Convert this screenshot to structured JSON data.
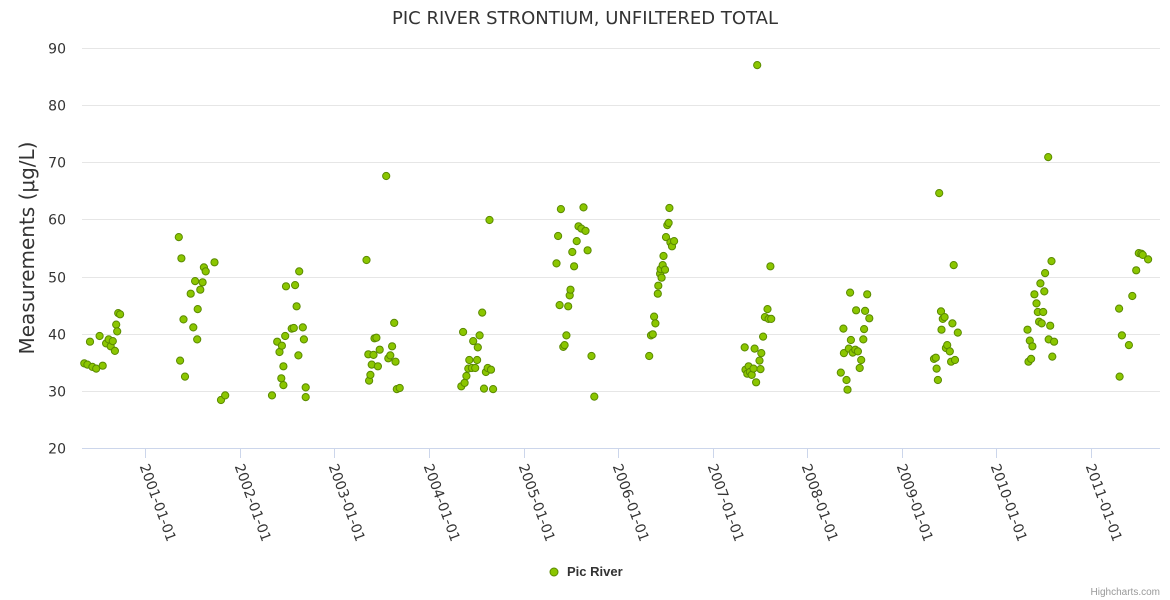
{
  "credits": "Highcharts.com",
  "colors": {
    "marker_fill": "#8bc600",
    "marker_stroke": "#5a8a00"
  },
  "chart_data": {
    "type": "scatter",
    "title": "PIC RIVER STRONTIUM, UNFILTERED TOTAL",
    "ylabel": "Measurements (μg/L)",
    "xlabel": "",
    "ylim": [
      20,
      90
    ],
    "yticks": [
      20,
      30,
      40,
      50,
      60,
      70,
      80,
      90
    ],
    "xlim": [
      "2000-05-01",
      "2011-09-25"
    ],
    "xticks": [
      "2001-01-01",
      "2002-01-01",
      "2003-01-01",
      "2004-01-01",
      "2005-01-01",
      "2006-01-01",
      "2007-01-01",
      "2008-01-01",
      "2009-01-01",
      "2010-01-01",
      "2011-01-01"
    ],
    "grid": true,
    "legend_position": "bottom-center",
    "series": [
      {
        "name": "Pic River",
        "points": [
          [
            "2000-05-10",
            34.8
          ],
          [
            "2000-05-22",
            34.6
          ],
          [
            "2000-06-01",
            38.6
          ],
          [
            "2000-06-10",
            34.2
          ],
          [
            "2000-06-25",
            33.9
          ],
          [
            "2000-07-08",
            39.6
          ],
          [
            "2000-07-20",
            34.4
          ],
          [
            "2000-08-02",
            38.3
          ],
          [
            "2000-08-12",
            39.0
          ],
          [
            "2000-08-20",
            37.8
          ],
          [
            "2000-08-28",
            38.7
          ],
          [
            "2000-09-05",
            37.0
          ],
          [
            "2000-09-10",
            41.6
          ],
          [
            "2000-09-14",
            40.4
          ],
          [
            "2000-09-18",
            43.6
          ],
          [
            "2000-09-25",
            43.4
          ],
          [
            "2001-05-10",
            56.9
          ],
          [
            "2001-05-15",
            35.3
          ],
          [
            "2001-05-20",
            53.2
          ],
          [
            "2001-05-28",
            42.5
          ],
          [
            "2001-06-03",
            32.5
          ],
          [
            "2001-06-25",
            47.0
          ],
          [
            "2001-07-05",
            41.1
          ],
          [
            "2001-07-12",
            49.2
          ],
          [
            "2001-07-20",
            39.0
          ],
          [
            "2001-07-22",
            44.3
          ],
          [
            "2001-08-01",
            47.7
          ],
          [
            "2001-08-10",
            49.0
          ],
          [
            "2001-08-15",
            51.6
          ],
          [
            "2001-08-22",
            50.9
          ],
          [
            "2001-09-25",
            52.5
          ],
          [
            "2001-10-20",
            28.4
          ],
          [
            "2001-11-05",
            29.2
          ],
          [
            "2002-05-05",
            29.2
          ],
          [
            "2002-05-25",
            38.6
          ],
          [
            "2002-06-03",
            36.8
          ],
          [
            "2002-06-10",
            32.2
          ],
          [
            "2002-06-12",
            37.9
          ],
          [
            "2002-06-18",
            34.3
          ],
          [
            "2002-06-18",
            31.0
          ],
          [
            "2002-06-25",
            39.6
          ],
          [
            "2002-06-28",
            48.3
          ],
          [
            "2002-07-20",
            40.9
          ],
          [
            "2002-07-28",
            41.0
          ],
          [
            "2002-08-02",
            48.5
          ],
          [
            "2002-08-08",
            44.8
          ],
          [
            "2002-08-15",
            36.2
          ],
          [
            "2002-08-18",
            50.9
          ],
          [
            "2002-09-01",
            41.1
          ],
          [
            "2002-09-05",
            39.0
          ],
          [
            "2002-09-12",
            30.6
          ],
          [
            "2002-09-12",
            28.9
          ],
          [
            "2003-05-05",
            52.9
          ],
          [
            "2003-05-12",
            36.4
          ],
          [
            "2003-05-15",
            31.8
          ],
          [
            "2003-05-20",
            32.8
          ],
          [
            "2003-05-25",
            34.6
          ],
          [
            "2003-06-01",
            36.3
          ],
          [
            "2003-06-05",
            39.2
          ],
          [
            "2003-06-12",
            39.3
          ],
          [
            "2003-06-18",
            34.3
          ],
          [
            "2003-06-25",
            37.2
          ],
          [
            "2003-07-20",
            67.6
          ],
          [
            "2003-07-28",
            35.7
          ],
          [
            "2003-08-05",
            36.2
          ],
          [
            "2003-08-12",
            37.8
          ],
          [
            "2003-08-20",
            41.9
          ],
          [
            "2003-08-25",
            35.1
          ],
          [
            "2003-08-30",
            30.3
          ],
          [
            "2003-09-10",
            30.5
          ],
          [
            "2004-05-05",
            30.8
          ],
          [
            "2004-05-12",
            40.3
          ],
          [
            "2004-05-18",
            31.4
          ],
          [
            "2004-05-25",
            32.6
          ],
          [
            "2004-06-01",
            33.9
          ],
          [
            "2004-06-05",
            35.4
          ],
          [
            "2004-06-15",
            34.0
          ],
          [
            "2004-06-20",
            38.7
          ],
          [
            "2004-06-28",
            34.0
          ],
          [
            "2004-07-05",
            35.4
          ],
          [
            "2004-07-08",
            37.6
          ],
          [
            "2004-07-15",
            39.7
          ],
          [
            "2004-07-25",
            43.7
          ],
          [
            "2004-08-01",
            30.4
          ],
          [
            "2004-08-08",
            33.3
          ],
          [
            "2004-08-15",
            34.0
          ],
          [
            "2004-08-22",
            59.9
          ],
          [
            "2004-08-28",
            33.7
          ],
          [
            "2004-09-05",
            30.3
          ],
          [
            "2005-05-08",
            52.3
          ],
          [
            "2005-05-14",
            57.1
          ],
          [
            "2005-05-20",
            45.0
          ],
          [
            "2005-05-25",
            61.8
          ],
          [
            "2005-06-03",
            37.7
          ],
          [
            "2005-06-08",
            38.0
          ],
          [
            "2005-06-15",
            39.7
          ],
          [
            "2005-06-22",
            44.8
          ],
          [
            "2005-06-28",
            46.7
          ],
          [
            "2005-07-01",
            47.7
          ],
          [
            "2005-07-08",
            54.3
          ],
          [
            "2005-07-15",
            51.8
          ],
          [
            "2005-07-25",
            56.2
          ],
          [
            "2005-08-01",
            58.8
          ],
          [
            "2005-08-12",
            58.4
          ],
          [
            "2005-08-20",
            62.1
          ],
          [
            "2005-08-28",
            58.0
          ],
          [
            "2005-09-05",
            54.6
          ],
          [
            "2005-09-20",
            36.1
          ],
          [
            "2005-10-01",
            29.0
          ],
          [
            "2006-05-01",
            36.1
          ],
          [
            "2006-05-08",
            39.7
          ],
          [
            "2006-05-15",
            39.9
          ],
          [
            "2006-05-20",
            43.0
          ],
          [
            "2006-05-25",
            41.8
          ],
          [
            "2006-06-03",
            47.0
          ],
          [
            "2006-06-05",
            48.4
          ],
          [
            "2006-06-12",
            50.5
          ],
          [
            "2006-06-14",
            51.3
          ],
          [
            "2006-06-18",
            49.8
          ],
          [
            "2006-06-22",
            52.0
          ],
          [
            "2006-06-25",
            53.6
          ],
          [
            "2006-07-01",
            51.2
          ],
          [
            "2006-07-05",
            56.9
          ],
          [
            "2006-07-10",
            59.0
          ],
          [
            "2006-07-15",
            59.4
          ],
          [
            "2006-07-18",
            62.0
          ],
          [
            "2006-07-22",
            56.0
          ],
          [
            "2006-07-28",
            55.3
          ],
          [
            "2006-08-05",
            56.2
          ],
          [
            "2007-05-05",
            37.6
          ],
          [
            "2007-05-08",
            33.7
          ],
          [
            "2007-05-15",
            33.0
          ],
          [
            "2007-05-20",
            34.3
          ],
          [
            "2007-05-25",
            33.3
          ],
          [
            "2007-06-01",
            32.8
          ],
          [
            "2007-06-08",
            33.9
          ],
          [
            "2007-06-12",
            37.4
          ],
          [
            "2007-06-18",
            31.5
          ],
          [
            "2007-06-22",
            87.0
          ],
          [
            "2007-07-01",
            35.3
          ],
          [
            "2007-07-05",
            33.8
          ],
          [
            "2007-07-08",
            36.6
          ],
          [
            "2007-07-15",
            39.5
          ],
          [
            "2007-07-22",
            42.9
          ],
          [
            "2007-08-01",
            44.3
          ],
          [
            "2007-08-05",
            42.6
          ],
          [
            "2007-08-12",
            51.8
          ],
          [
            "2007-08-15",
            42.6
          ],
          [
            "2008-05-10",
            33.2
          ],
          [
            "2008-05-20",
            40.9
          ],
          [
            "2008-05-22",
            36.6
          ],
          [
            "2008-06-01",
            31.9
          ],
          [
            "2008-06-05",
            30.2
          ],
          [
            "2008-06-10",
            37.4
          ],
          [
            "2008-06-15",
            47.2
          ],
          [
            "2008-06-18",
            38.9
          ],
          [
            "2008-06-25",
            36.7
          ],
          [
            "2008-07-05",
            37.2
          ],
          [
            "2008-07-08",
            44.1
          ],
          [
            "2008-07-15",
            36.9
          ],
          [
            "2008-07-22",
            34.0
          ],
          [
            "2008-07-28",
            35.4
          ],
          [
            "2008-08-05",
            39.0
          ],
          [
            "2008-08-08",
            40.8
          ],
          [
            "2008-08-12",
            44.0
          ],
          [
            "2008-08-20",
            46.9
          ],
          [
            "2008-08-28",
            42.7
          ],
          [
            "2009-05-05",
            35.6
          ],
          [
            "2009-05-12",
            35.8
          ],
          [
            "2009-05-15",
            33.9
          ],
          [
            "2009-05-20",
            31.9
          ],
          [
            "2009-05-25",
            64.6
          ],
          [
            "2009-06-01",
            43.9
          ],
          [
            "2009-06-03",
            40.7
          ],
          [
            "2009-06-08",
            42.6
          ],
          [
            "2009-06-15",
            42.9
          ],
          [
            "2009-06-20",
            37.5
          ],
          [
            "2009-06-25",
            38.0
          ],
          [
            "2009-07-05",
            36.9
          ],
          [
            "2009-07-10",
            35.1
          ],
          [
            "2009-07-15",
            41.8
          ],
          [
            "2009-07-20",
            52.0
          ],
          [
            "2009-07-25",
            35.4
          ],
          [
            "2009-08-05",
            40.2
          ],
          [
            "2010-05-01",
            40.7
          ],
          [
            "2010-05-05",
            35.1
          ],
          [
            "2010-05-10",
            38.8
          ],
          [
            "2010-05-15",
            35.6
          ],
          [
            "2010-05-20",
            37.8
          ],
          [
            "2010-05-28",
            46.9
          ],
          [
            "2010-06-05",
            45.3
          ],
          [
            "2010-06-10",
            43.8
          ],
          [
            "2010-06-15",
            42.1
          ],
          [
            "2010-06-20",
            48.8
          ],
          [
            "2010-06-25",
            41.8
          ],
          [
            "2010-07-01",
            43.8
          ],
          [
            "2010-07-05",
            47.4
          ],
          [
            "2010-07-08",
            50.6
          ],
          [
            "2010-07-20",
            70.9
          ],
          [
            "2010-07-22",
            39.0
          ],
          [
            "2010-07-28",
            41.4
          ],
          [
            "2010-08-02",
            52.7
          ],
          [
            "2010-08-05",
            36.0
          ],
          [
            "2010-08-12",
            38.6
          ],
          [
            "2011-04-20",
            44.4
          ],
          [
            "2011-04-22",
            32.5
          ],
          [
            "2011-05-01",
            39.7
          ],
          [
            "2011-05-28",
            38.0
          ],
          [
            "2011-06-10",
            46.6
          ],
          [
            "2011-06-25",
            51.1
          ],
          [
            "2011-07-05",
            54.1
          ],
          [
            "2011-07-15",
            54.0
          ],
          [
            "2011-07-20",
            53.8
          ],
          [
            "2011-08-10",
            53.0
          ]
        ]
      }
    ]
  }
}
